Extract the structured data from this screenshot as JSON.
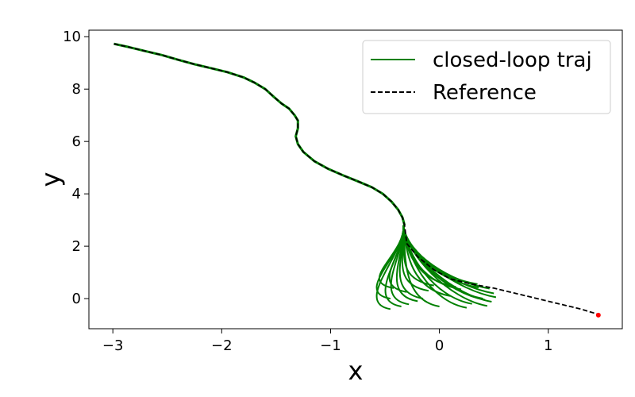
{
  "chart_data": {
    "type": "line",
    "title": "",
    "xlabel": "x",
    "ylabel": "y",
    "xlim": [
      -3.22,
      1.68
    ],
    "ylim": [
      -1.15,
      10.25
    ],
    "grid": false,
    "legend_position": "top-right",
    "x_ticks": [
      -3,
      -2,
      -1,
      0,
      1
    ],
    "x_tick_labels": [
      "−3",
      "−2",
      "−1",
      "0",
      "1"
    ],
    "y_ticks": [
      0,
      2,
      4,
      6,
      8,
      10
    ],
    "y_tick_labels": [
      "0",
      "2",
      "4",
      "6",
      "8",
      "10"
    ],
    "series": [
      {
        "name": "closed-loop traj",
        "color": "#008000",
        "style": "solid",
        "x": [
          -2.99,
          -2.85,
          -2.7,
          -2.55,
          -2.4,
          -2.25,
          -2.1,
          -1.95,
          -1.8,
          -1.7,
          -1.6,
          -1.52,
          -1.45,
          -1.38,
          -1.33,
          -1.3,
          -1.3,
          -1.32,
          -1.3,
          -1.25,
          -1.15,
          -1.02,
          -0.88,
          -0.75,
          -0.62,
          -0.52,
          -0.44,
          -0.38,
          -0.34,
          -0.32
        ],
        "y": [
          9.73,
          9.6,
          9.45,
          9.3,
          9.12,
          8.95,
          8.8,
          8.65,
          8.45,
          8.25,
          8.0,
          7.7,
          7.45,
          7.25,
          7.0,
          6.8,
          6.5,
          6.2,
          5.9,
          5.6,
          5.25,
          4.95,
          4.7,
          4.48,
          4.25,
          4.0,
          3.7,
          3.4,
          3.1,
          2.8
        ],
        "fan_start": [
          -0.33,
          2.8
        ],
        "fan_endpoints": [
          [
            0.46,
            0.38
          ],
          [
            0.5,
            0.2
          ],
          [
            0.52,
            0.05
          ],
          [
            0.48,
            -0.12
          ],
          [
            0.44,
            -0.28
          ],
          [
            0.36,
            0.42
          ],
          [
            0.4,
            0.0
          ],
          [
            0.3,
            -0.2
          ],
          [
            0.2,
            0.35
          ],
          [
            0.25,
            -0.35
          ],
          [
            0.1,
            0.1
          ],
          [
            0.0,
            -0.3
          ],
          [
            -0.1,
            0.3
          ],
          [
            -0.2,
            -0.1
          ],
          [
            -0.3,
            0.25
          ],
          [
            -0.35,
            -0.3
          ],
          [
            -0.42,
            0.4
          ],
          [
            -0.45,
            0.0
          ],
          [
            -0.45,
            -0.4
          ],
          [
            -0.28,
            -0.22
          ],
          [
            0.15,
            0.45
          ],
          [
            0.35,
            0.55
          ],
          [
            0.42,
            -0.05
          ],
          [
            -0.05,
            0.5
          ],
          [
            -0.15,
            0.0
          ]
        ]
      },
      {
        "name": "Reference",
        "color": "#000000",
        "style": "dashed",
        "x": [
          -2.99,
          -2.85,
          -2.7,
          -2.55,
          -2.4,
          -2.25,
          -2.1,
          -1.95,
          -1.8,
          -1.7,
          -1.6,
          -1.52,
          -1.45,
          -1.38,
          -1.33,
          -1.3,
          -1.3,
          -1.32,
          -1.3,
          -1.25,
          -1.15,
          -1.02,
          -0.88,
          -0.75,
          -0.62,
          -0.52,
          -0.44,
          -0.38,
          -0.34,
          -0.32,
          -0.3,
          -0.2,
          -0.05,
          0.1,
          0.3,
          0.5,
          0.7,
          0.9,
          1.1,
          1.3,
          1.46
        ],
        "y": [
          9.73,
          9.6,
          9.45,
          9.3,
          9.12,
          8.95,
          8.8,
          8.65,
          8.45,
          8.25,
          8.0,
          7.7,
          7.45,
          7.25,
          7.0,
          6.8,
          6.5,
          6.2,
          5.9,
          5.6,
          5.25,
          4.95,
          4.7,
          4.48,
          4.25,
          4.0,
          3.7,
          3.4,
          3.1,
          2.8,
          2.1,
          1.6,
          1.1,
          0.75,
          0.55,
          0.4,
          0.2,
          0.0,
          -0.2,
          -0.4,
          -0.6
        ]
      }
    ],
    "target_point": {
      "x": 1.46,
      "y": -0.63,
      "color": "#ff0000"
    }
  }
}
